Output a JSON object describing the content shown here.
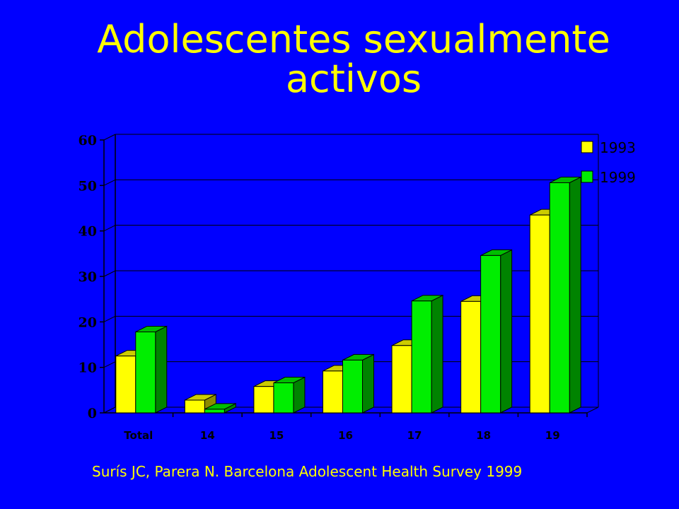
{
  "slide": {
    "title_line1": "Adolescentes sexualmente",
    "title_line2": "activos",
    "footer": "Surís JC, Parera N. Barcelona Adolescent Health Survey 1999"
  },
  "colors": {
    "background": "#0000FF",
    "title": "#FFFF00",
    "series_1993": "#FFFF00",
    "series_1999": "#00EE00"
  },
  "chart_data": {
    "type": "bar",
    "style": "3d-clustered",
    "categories": [
      "Total",
      "14",
      "15",
      "16",
      "17",
      "18",
      "19"
    ],
    "series": [
      {
        "name": "1993",
        "values": [
          12.5,
          2.8,
          5.8,
          9.2,
          14.8,
          24.5,
          43.5
        ]
      },
      {
        "name": "1999",
        "values": [
          17.8,
          0.8,
          6.6,
          11.6,
          24.6,
          34.6,
          50.6
        ]
      }
    ],
    "ylim": [
      0,
      60
    ],
    "yticks": [
      0,
      10,
      20,
      30,
      40,
      50,
      60
    ],
    "grid": true,
    "legend_placement": "top-right",
    "title": "",
    "xlabel": "",
    "ylabel": ""
  }
}
